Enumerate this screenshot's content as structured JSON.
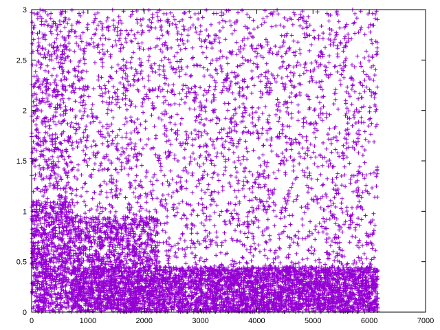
{
  "chart_data": {
    "type": "scatter",
    "title": "",
    "xlabel": "",
    "ylabel": "",
    "xlim": [
      0,
      7000
    ],
    "ylim": [
      0,
      3
    ],
    "x_ticks": [
      "0",
      "1000",
      "2000",
      "3000",
      "4000",
      "5000",
      "6000",
      "7000"
    ],
    "y_ticks": [
      "0",
      "0.5",
      "1",
      "1.5",
      "2",
      "2.5",
      "3"
    ],
    "grid": false,
    "legend": "none",
    "marker": "plus",
    "series": [
      {
        "color": "#9400d3",
        "x_range": [
          0,
          6150
        ],
        "regions": [
          {
            "x_range": [
              0,
              6150
            ],
            "y_range": [
              0,
              3
            ],
            "point_count": 3500
          },
          {
            "x_range": [
              700,
              6150
            ],
            "y_range": [
              0,
              0.45
            ],
            "point_count": 4200
          },
          {
            "x_range": [
              700,
              2250
            ],
            "y_range": [
              0.45,
              0.95
            ],
            "point_count": 600
          },
          {
            "x_range": [
              0,
              700
            ],
            "y_range": [
              0,
              1.1
            ],
            "point_count": 600
          },
          {
            "x_range": [
              0,
              700
            ],
            "y_range": [
              0,
              3
            ],
            "point_count": 400
          }
        ]
      }
    ]
  }
}
